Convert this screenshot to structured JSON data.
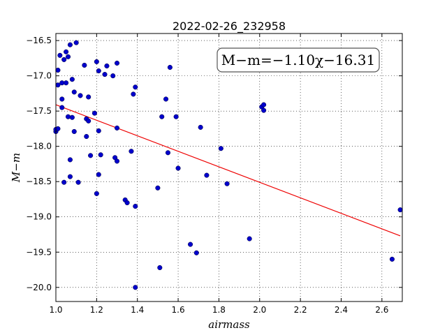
{
  "chart_data": {
    "type": "scatter",
    "title": "2022-02-26_232958",
    "xlabel": "airmass",
    "ylabel": "M−m",
    "xlim": [
      1.0,
      2.7
    ],
    "ylim": [
      -20.2,
      -16.4
    ],
    "y_inverted": true,
    "grid": true,
    "xticks": [
      1.0,
      1.2,
      1.4,
      1.6,
      1.8,
      2.0,
      2.2,
      2.4,
      2.6
    ],
    "xtick_labels": [
      "1.0",
      "1.2",
      "1.4",
      "1.6",
      "1.8",
      "2.0",
      "2.2",
      "2.4",
      "2.6"
    ],
    "yticks": [
      -16.5,
      -17.0,
      -17.5,
      -18.0,
      -18.5,
      -19.0,
      -19.5,
      -20.0
    ],
    "ytick_labels": [
      "−16.5",
      "−17.0",
      "−17.5",
      "−18.0",
      "−18.5",
      "−19.0",
      "−19.5",
      "−20.0"
    ],
    "annotation": "M−m=−1.10χ−16.31",
    "annotation_placement": "top-right",
    "fit": {
      "slope": -1.1,
      "intercept": -16.31,
      "x_range": [
        1.0,
        2.69
      ],
      "color": "#ee0000"
    },
    "point_color": "#0000cc",
    "points": [
      {
        "x": 1.0,
        "y": -17.79
      },
      {
        "x": 1.0,
        "y": -17.76
      },
      {
        "x": 1.01,
        "y": -16.92
      },
      {
        "x": 1.01,
        "y": -17.13
      },
      {
        "x": 1.01,
        "y": -17.75
      },
      {
        "x": 1.02,
        "y": -16.71
      },
      {
        "x": 1.03,
        "y": -17.1
      },
      {
        "x": 1.03,
        "y": -17.33
      },
      {
        "x": 1.03,
        "y": -17.45
      },
      {
        "x": 1.04,
        "y": -16.77
      },
      {
        "x": 1.04,
        "y": -18.51
      },
      {
        "x": 1.05,
        "y": -16.66
      },
      {
        "x": 1.05,
        "y": -17.1
      },
      {
        "x": 1.06,
        "y": -16.73
      },
      {
        "x": 1.06,
        "y": -17.58
      },
      {
        "x": 1.07,
        "y": -16.56
      },
      {
        "x": 1.07,
        "y": -18.19
      },
      {
        "x": 1.07,
        "y": -18.43
      },
      {
        "x": 1.08,
        "y": -17.05
      },
      {
        "x": 1.08,
        "y": -17.59
      },
      {
        "x": 1.09,
        "y": -17.23
      },
      {
        "x": 1.09,
        "y": -17.79
      },
      {
        "x": 1.1,
        "y": -16.53
      },
      {
        "x": 1.11,
        "y": -18.51
      },
      {
        "x": 1.12,
        "y": -17.28
      },
      {
        "x": 1.14,
        "y": -16.85
      },
      {
        "x": 1.15,
        "y": -17.61
      },
      {
        "x": 1.15,
        "y": -17.86
      },
      {
        "x": 1.16,
        "y": -17.64
      },
      {
        "x": 1.16,
        "y": -17.3
      },
      {
        "x": 1.17,
        "y": -18.13
      },
      {
        "x": 1.19,
        "y": -17.53
      },
      {
        "x": 1.2,
        "y": -16.8
      },
      {
        "x": 1.2,
        "y": -18.67
      },
      {
        "x": 1.21,
        "y": -16.93
      },
      {
        "x": 1.21,
        "y": -17.78
      },
      {
        "x": 1.21,
        "y": -18.4
      },
      {
        "x": 1.22,
        "y": -18.12
      },
      {
        "x": 1.24,
        "y": -16.98
      },
      {
        "x": 1.25,
        "y": -16.86
      },
      {
        "x": 1.28,
        "y": -17.0
      },
      {
        "x": 1.29,
        "y": -18.16
      },
      {
        "x": 1.3,
        "y": -16.82
      },
      {
        "x": 1.3,
        "y": -17.74
      },
      {
        "x": 1.3,
        "y": -18.21
      },
      {
        "x": 1.34,
        "y": -18.76
      },
      {
        "x": 1.35,
        "y": -18.8
      },
      {
        "x": 1.37,
        "y": -18.07
      },
      {
        "x": 1.38,
        "y": -17.26
      },
      {
        "x": 1.39,
        "y": -17.16
      },
      {
        "x": 1.39,
        "y": -18.85
      },
      {
        "x": 1.39,
        "y": -20.0
      },
      {
        "x": 1.5,
        "y": -18.59
      },
      {
        "x": 1.51,
        "y": -19.72
      },
      {
        "x": 1.52,
        "y": -17.58
      },
      {
        "x": 1.54,
        "y": -17.33
      },
      {
        "x": 1.55,
        "y": -18.09
      },
      {
        "x": 1.56,
        "y": -16.88
      },
      {
        "x": 1.59,
        "y": -17.58
      },
      {
        "x": 1.6,
        "y": -18.31
      },
      {
        "x": 1.66,
        "y": -19.39
      },
      {
        "x": 1.69,
        "y": -19.51
      },
      {
        "x": 1.71,
        "y": -17.73
      },
      {
        "x": 1.74,
        "y": -18.41
      },
      {
        "x": 1.81,
        "y": -18.03
      },
      {
        "x": 1.84,
        "y": -18.53
      },
      {
        "x": 1.95,
        "y": -19.31
      },
      {
        "x": 2.01,
        "y": -17.44
      },
      {
        "x": 2.02,
        "y": -17.41
      },
      {
        "x": 2.02,
        "y": -17.49
      },
      {
        "x": 2.65,
        "y": -19.6
      },
      {
        "x": 2.69,
        "y": -18.9
      }
    ]
  }
}
